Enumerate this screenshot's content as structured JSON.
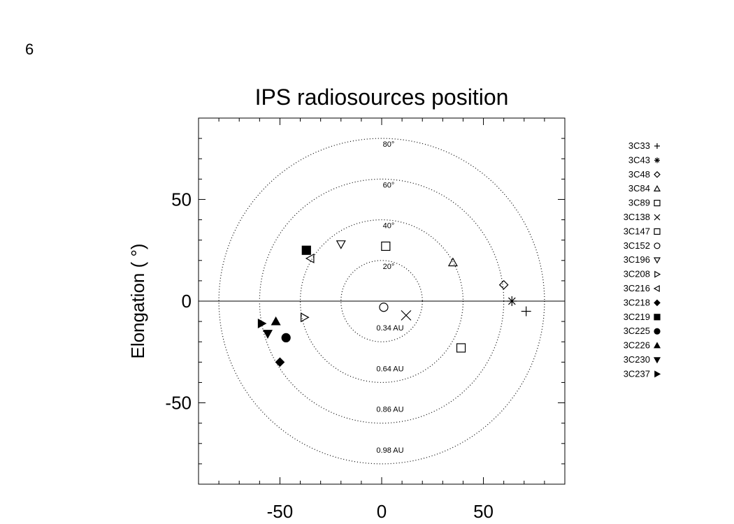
{
  "page_number": "6",
  "chart_data": {
    "type": "scatter",
    "title": "IPS radiosources position",
    "ylabel": "Elongation ( °)",
    "xlabel": "",
    "xlim": [
      -90,
      90
    ],
    "ylim": [
      -90,
      90
    ],
    "x_ticks": [
      -50,
      0,
      50
    ],
    "y_ticks": [
      -50,
      0,
      50
    ],
    "grid": false,
    "legend_position": "right",
    "circles": [
      {
        "radius": 20,
        "style": "dotted",
        "angle_label": "20°",
        "distance_label": "0.34 AU"
      },
      {
        "radius": 40,
        "style": "dotted",
        "angle_label": "40°",
        "distance_label": "0.64 AU"
      },
      {
        "radius": 60,
        "style": "dotted",
        "angle_label": "60°",
        "distance_label": "0.86 AU"
      },
      {
        "radius": 80,
        "style": "dotted",
        "angle_label": "80°",
        "distance_label": "0.98 AU"
      }
    ],
    "series": [
      {
        "name": "3C33",
        "marker": "plus",
        "x": 71,
        "y": -5
      },
      {
        "name": "3C43",
        "marker": "asterisk",
        "x": 64,
        "y": 0
      },
      {
        "name": "3C48",
        "marker": "diamond-open",
        "x": 60,
        "y": 8
      },
      {
        "name": "3C84",
        "marker": "triangle-open",
        "x": 35,
        "y": 19
      },
      {
        "name": "3C89",
        "marker": "square-open",
        "x": 2,
        "y": 27
      },
      {
        "name": "3C138",
        "marker": "cross",
        "x": 12,
        "y": -7
      },
      {
        "name": "3C147",
        "marker": "square-open",
        "x": 39,
        "y": -23
      },
      {
        "name": "3C152",
        "marker": "circle-open",
        "x": 1,
        "y": -3
      },
      {
        "name": "3C196",
        "marker": "tri-down-open",
        "x": -20,
        "y": 28
      },
      {
        "name": "3C208",
        "marker": "tri-right-open",
        "x": -38,
        "y": -8
      },
      {
        "name": "3C216",
        "marker": "tri-left-open",
        "x": -35,
        "y": 21
      },
      {
        "name": "3C218",
        "marker": "diamond-filled",
        "x": -50,
        "y": -30
      },
      {
        "name": "3C219",
        "marker": "square-filled",
        "x": -37,
        "y": 25
      },
      {
        "name": "3C225",
        "marker": "circle-filled",
        "x": -47,
        "y": -18
      },
      {
        "name": "3C226",
        "marker": "tri-up-filled",
        "x": -52,
        "y": -10
      },
      {
        "name": "3C230",
        "marker": "tri-down-filled",
        "x": -56,
        "y": -16
      },
      {
        "name": "3C237",
        "marker": "tri-right-filled",
        "x": -59,
        "y": -11
      }
    ]
  }
}
